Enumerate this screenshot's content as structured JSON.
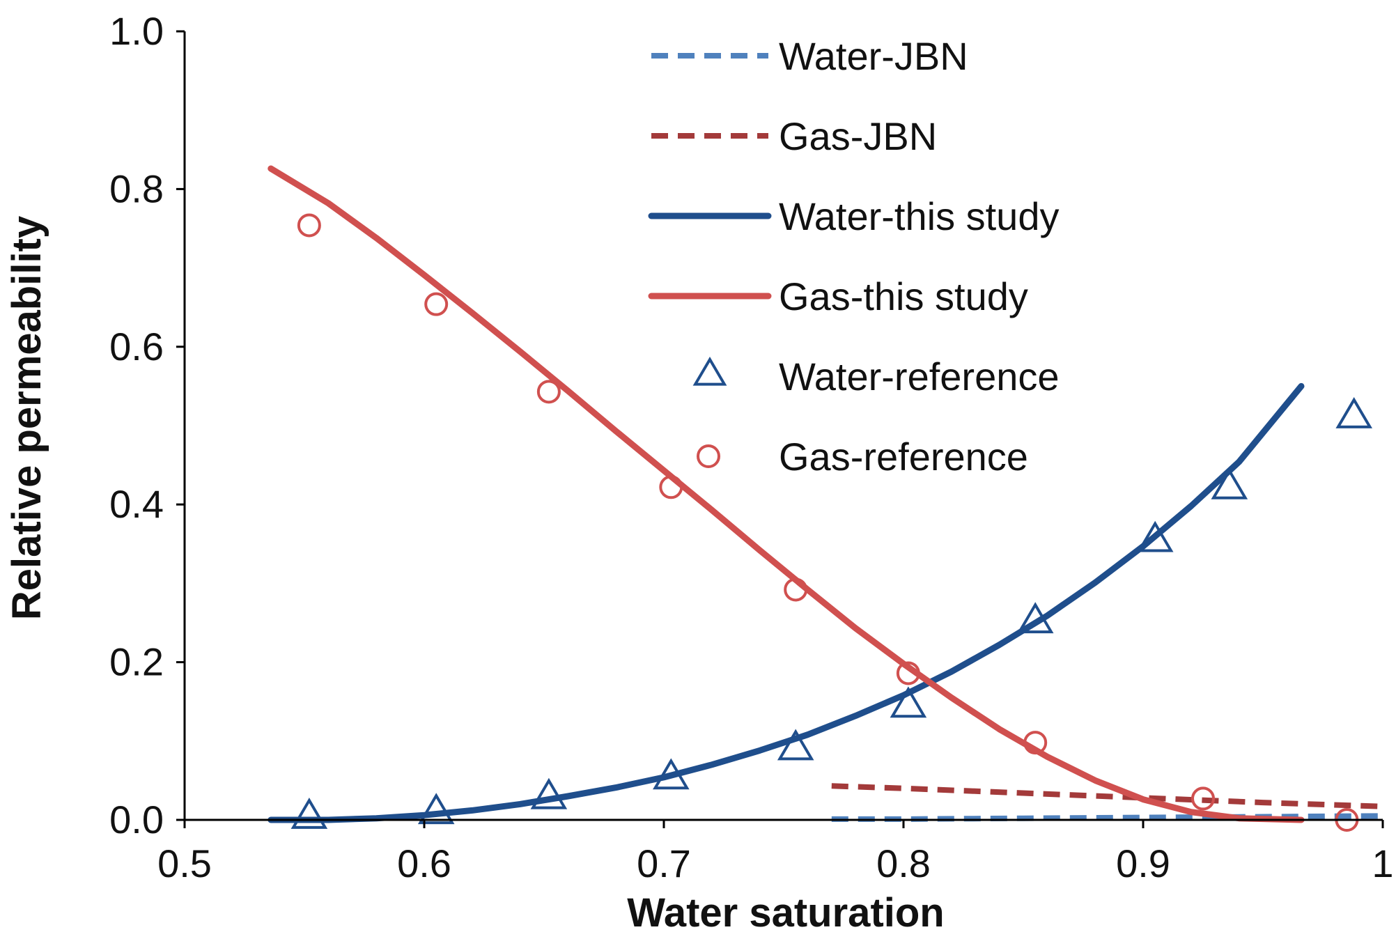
{
  "chart_data": {
    "type": "line",
    "title": "",
    "xlabel": "Water saturation",
    "ylabel": "Relative permeability",
    "xlim": [
      0.5,
      1.0
    ],
    "ylim": [
      0.0,
      1.0
    ],
    "xticks": [
      0.5,
      0.6,
      0.7,
      0.8,
      0.9,
      1.0
    ],
    "xtick_labels": [
      "0.5",
      "0.6",
      "0.7",
      "0.8",
      "0.9",
      "1"
    ],
    "yticks": [
      0.0,
      0.2,
      0.4,
      0.6,
      0.8,
      1.0
    ],
    "ytick_labels": [
      "0.0",
      "0.2",
      "0.4",
      "0.6",
      "0.8",
      "1.0"
    ],
    "grid": false,
    "legend_position": "top-right",
    "colors": {
      "water_jbn": "#4f81bd",
      "gas_jbn": "#a33a3a",
      "water_study": "#1f4e8c",
      "gas_study": "#d0504f",
      "water_ref": "#1f4e8c",
      "gas_ref": "#d0504f"
    },
    "series": [
      {
        "name": "Water-JBN",
        "kind": "line",
        "style": "dashed",
        "color": "#4f81bd",
        "x": [
          0.77,
          0.8,
          0.85,
          0.9,
          0.95,
          1.0
        ],
        "y": [
          0.001,
          0.001,
          0.002,
          0.003,
          0.004,
          0.005
        ]
      },
      {
        "name": "Gas-JBN",
        "kind": "line",
        "style": "dashed",
        "color": "#a33a3a",
        "x": [
          0.77,
          0.8,
          0.85,
          0.9,
          0.95,
          1.0
        ],
        "y": [
          0.043,
          0.04,
          0.034,
          0.028,
          0.022,
          0.017
        ]
      },
      {
        "name": "Water-this study",
        "kind": "line",
        "style": "solid",
        "color": "#1f4e8c",
        "x": [
          0.536,
          0.56,
          0.58,
          0.6,
          0.62,
          0.64,
          0.66,
          0.68,
          0.7,
          0.72,
          0.74,
          0.76,
          0.78,
          0.8,
          0.82,
          0.84,
          0.86,
          0.88,
          0.9,
          0.92,
          0.94,
          0.966
        ],
        "y": [
          0.0,
          0.0,
          0.002,
          0.006,
          0.012,
          0.02,
          0.03,
          0.041,
          0.054,
          0.07,
          0.088,
          0.108,
          0.132,
          0.158,
          0.188,
          0.222,
          0.259,
          0.301,
          0.347,
          0.398,
          0.454,
          0.55
        ]
      },
      {
        "name": "Gas-this study",
        "kind": "line",
        "style": "solid",
        "color": "#d0504f",
        "x": [
          0.536,
          0.56,
          0.58,
          0.6,
          0.62,
          0.64,
          0.66,
          0.68,
          0.7,
          0.72,
          0.74,
          0.76,
          0.78,
          0.8,
          0.82,
          0.84,
          0.86,
          0.88,
          0.9,
          0.92,
          0.94,
          0.966
        ],
        "y": [
          0.826,
          0.782,
          0.738,
          0.691,
          0.643,
          0.594,
          0.544,
          0.493,
          0.443,
          0.393,
          0.342,
          0.292,
          0.243,
          0.198,
          0.155,
          0.115,
          0.08,
          0.05,
          0.026,
          0.01,
          0.002,
          0.0
        ]
      },
      {
        "name": "Water-reference",
        "kind": "marker",
        "marker": "triangle",
        "color": "#1f4e8c",
        "x": [
          0.552,
          0.605,
          0.652,
          0.703,
          0.755,
          0.802,
          0.855,
          0.905,
          0.936,
          0.988
        ],
        "y": [
          0.0,
          0.006,
          0.025,
          0.05,
          0.087,
          0.141,
          0.248,
          0.351,
          0.418,
          0.508
        ]
      },
      {
        "name": "Gas-reference",
        "kind": "marker",
        "marker": "circle",
        "color": "#d0504f",
        "x": [
          0.552,
          0.605,
          0.652,
          0.703,
          0.755,
          0.802,
          0.855,
          0.925,
          0.985
        ],
        "y": [
          0.754,
          0.654,
          0.543,
          0.422,
          0.292,
          0.186,
          0.098,
          0.027,
          0.0
        ]
      }
    ]
  }
}
